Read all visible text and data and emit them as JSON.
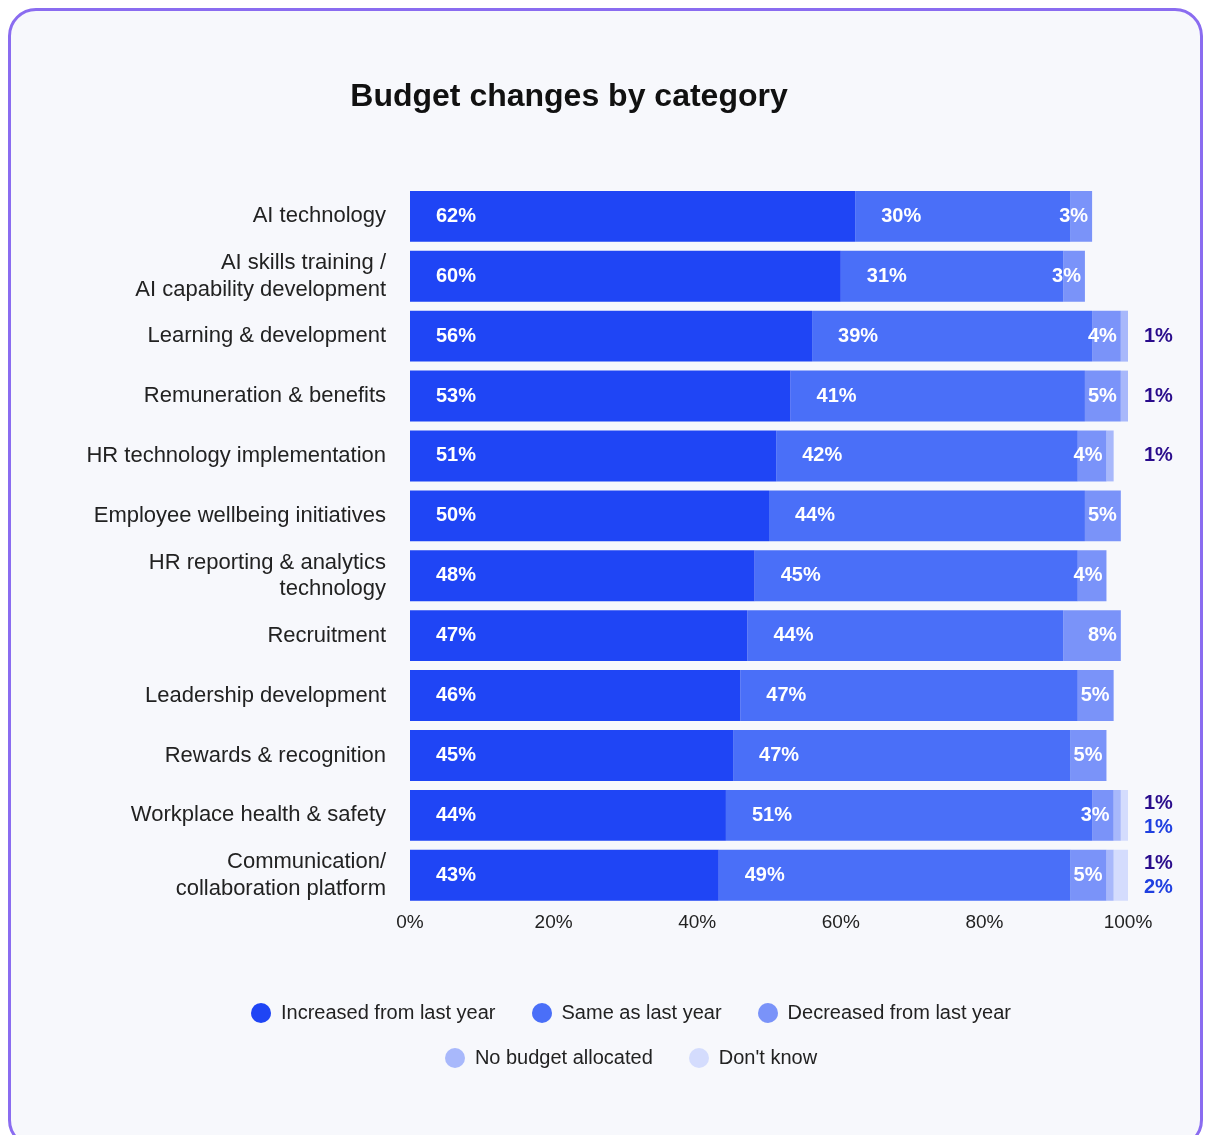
{
  "chart_data": {
    "type": "bar",
    "orientation": "horizontal",
    "stacked": true,
    "title": "Budget changes by category",
    "categories": [
      "AI technology",
      "AI skills training /\nAI capability development",
      "Learning & development",
      "Remuneration & benefits",
      "HR technology implementation",
      "Employee wellbeing initiatives",
      "HR reporting & analytics\ntechnology",
      "Recruitment",
      "Leadership development",
      "Rewards & recognition",
      "Workplace health & safety",
      "Communication/\ncollaboration platform"
    ],
    "series": [
      {
        "name": "Increased from last year",
        "color": "#1f45f5",
        "values": [
          62,
          60,
          56,
          53,
          51,
          50,
          48,
          47,
          46,
          45,
          44,
          43
        ],
        "value_labels": [
          "62%",
          "60%",
          "56%",
          "53%",
          "51%",
          "50%",
          "48%",
          "47%",
          "46%",
          "45%",
          "44%",
          "43%"
        ]
      },
      {
        "name": "Same as last year",
        "color": "#4a6ff8",
        "values": [
          30,
          31,
          39,
          41,
          42,
          44,
          45,
          44,
          47,
          47,
          51,
          49
        ],
        "value_labels": [
          "30%",
          "31%",
          "39%",
          "41%",
          "42%",
          "44%",
          "45%",
          "44%",
          "47%",
          "47%",
          "51%",
          "49%"
        ]
      },
      {
        "name": "Decreased from last year",
        "color": "#7a93f9",
        "values": [
          3,
          3,
          4,
          5,
          4,
          5,
          4,
          8,
          5,
          5,
          3,
          5
        ],
        "value_labels": [
          "3%",
          "3%",
          "4%",
          "5%",
          "4%",
          "5%",
          "4%",
          "8%",
          "5%",
          "5%",
          "3%",
          "5%"
        ]
      },
      {
        "name": "No budget allocated",
        "color": "#a8b8fb",
        "values": [
          null,
          null,
          1,
          1,
          1,
          null,
          null,
          null,
          null,
          null,
          1,
          1
        ],
        "value_labels": [
          null,
          null,
          "1%",
          "1%",
          "1%",
          null,
          null,
          null,
          null,
          null,
          "1%",
          "1%"
        ]
      },
      {
        "name": "Don't know",
        "color": "#d4dcfd",
        "values": [
          null,
          null,
          null,
          null,
          null,
          null,
          null,
          null,
          null,
          null,
          1,
          2
        ],
        "value_labels": [
          null,
          null,
          null,
          null,
          null,
          null,
          null,
          null,
          null,
          null,
          "1%",
          "2%"
        ]
      }
    ],
    "xlim": [
      0,
      100
    ],
    "xticks": [
      {
        "value": 0,
        "label": "0%"
      },
      {
        "value": 20,
        "label": "20%"
      },
      {
        "value": 40,
        "label": "40%"
      },
      {
        "value": 60,
        "label": "60%"
      },
      {
        "value": 80,
        "label": "80%"
      },
      {
        "value": 100,
        "label": "100%"
      }
    ],
    "grid": false,
    "legend": "bottom"
  }
}
